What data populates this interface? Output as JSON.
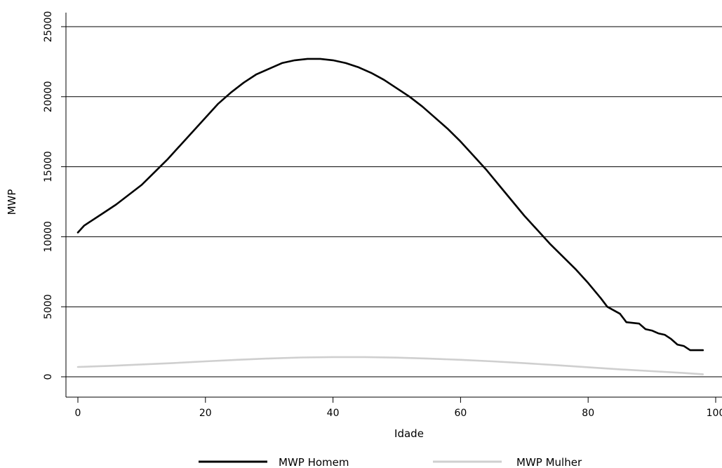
{
  "chart_data": {
    "type": "line",
    "title": "",
    "xlabel": "Idade",
    "ylabel": "MWP",
    "xlim": [
      0,
      100
    ],
    "ylim": [
      0,
      25000
    ],
    "x_ticks": [
      0,
      20,
      40,
      60,
      80,
      100
    ],
    "y_ticks": [
      0,
      5000,
      10000,
      15000,
      20000,
      25000
    ],
    "grid": "horizontal",
    "legend_position": "bottom",
    "series": [
      {
        "name": "MWP Homem",
        "color": "#000000",
        "x": [
          0,
          1,
          2,
          4,
          6,
          8,
          10,
          12,
          14,
          16,
          18,
          20,
          22,
          24,
          26,
          28,
          30,
          32,
          34,
          36,
          38,
          40,
          42,
          44,
          46,
          48,
          50,
          52,
          54,
          56,
          58,
          60,
          62,
          64,
          66,
          68,
          70,
          72,
          74,
          76,
          78,
          80,
          82,
          83,
          85,
          86,
          88,
          89,
          90,
          91,
          92,
          93,
          94,
          95,
          96,
          97,
          98
        ],
        "y": [
          10300,
          10800,
          11100,
          11700,
          12300,
          13000,
          13700,
          14600,
          15500,
          16500,
          17500,
          18500,
          19500,
          20300,
          21000,
          21600,
          22000,
          22400,
          22600,
          22700,
          22700,
          22600,
          22400,
          22100,
          21700,
          21200,
          20600,
          20000,
          19300,
          18500,
          17700,
          16800,
          15800,
          14800,
          13700,
          12600,
          11500,
          10500,
          9500,
          8600,
          7700,
          6700,
          5600,
          5000,
          4500,
          3900,
          3800,
          3400,
          3300,
          3100,
          3000,
          2700,
          2300,
          2200,
          1900,
          1900,
          1900
        ]
      },
      {
        "name": "MWP Mulher",
        "color": "#cfcfcf",
        "x": [
          0,
          5,
          10,
          15,
          20,
          25,
          30,
          35,
          40,
          45,
          50,
          55,
          60,
          65,
          70,
          75,
          80,
          85,
          90,
          95,
          98
        ],
        "y": [
          700,
          780,
          880,
          980,
          1100,
          1210,
          1310,
          1380,
          1410,
          1410,
          1370,
          1300,
          1210,
          1100,
          970,
          830,
          680,
          530,
          400,
          270,
          180
        ]
      }
    ]
  }
}
